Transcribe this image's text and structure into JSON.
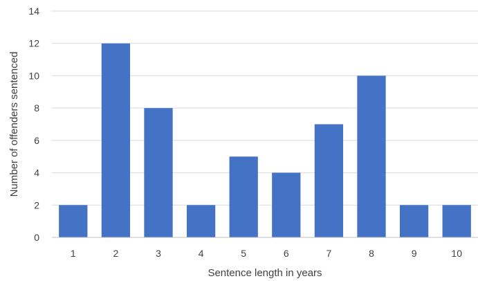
{
  "chart_data": {
    "type": "bar",
    "categories": [
      "1",
      "2",
      "3",
      "4",
      "5",
      "6",
      "7",
      "8",
      "9",
      "10"
    ],
    "values": [
      2,
      12,
      8,
      2,
      5,
      4,
      7,
      10,
      2,
      2
    ],
    "title": "",
    "xlabel": "Sentence length in years",
    "ylabel": "Number of offenders sentenced",
    "ylim": [
      0,
      14
    ],
    "yticks": [
      0,
      2,
      4,
      6,
      8,
      10,
      12,
      14
    ],
    "grid": true,
    "legend": "none",
    "colors": {
      "bar": "#4472C4",
      "grid": "#D9D9D9",
      "axis": "#BFBFBF",
      "text": "#404040"
    }
  }
}
